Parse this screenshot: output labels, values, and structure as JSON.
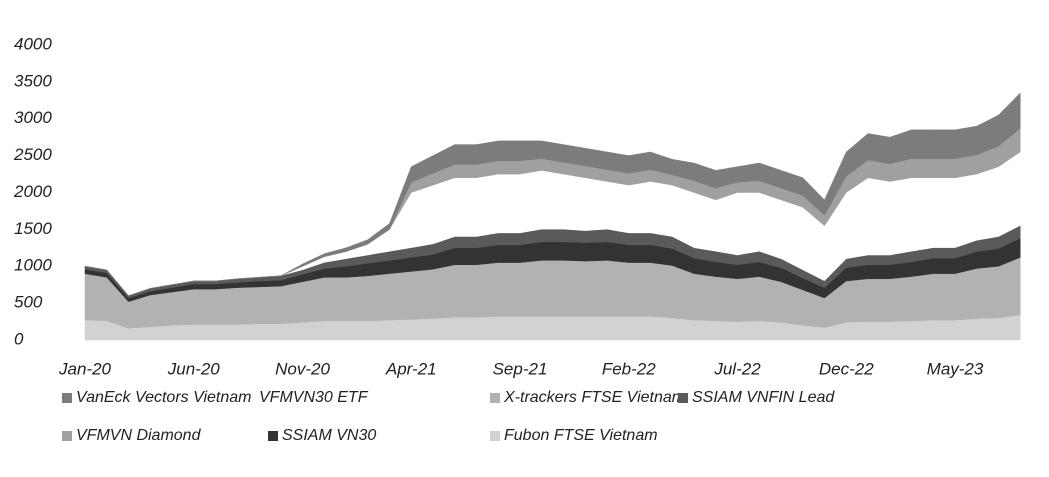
{
  "chart_data": {
    "type": "stacked_area",
    "categories": [
      "Jan-20",
      null,
      null,
      null,
      null,
      "Jun-20",
      null,
      null,
      null,
      null,
      "Nov-20",
      null,
      null,
      null,
      null,
      "Apr-21",
      null,
      null,
      null,
      null,
      "Sep-21",
      null,
      null,
      null,
      null,
      "Feb-22",
      null,
      null,
      null,
      null,
      "Jul-22",
      null,
      null,
      null,
      null,
      "Dec-22",
      null,
      null,
      null,
      null,
      "May-23",
      null,
      null,
      null
    ],
    "ylim": [
      0,
      4000
    ],
    "yticks": [
      0,
      500,
      1000,
      1500,
      2000,
      2500,
      3000,
      3500,
      4000
    ],
    "grid": false,
    "legend": "bottom",
    "series": [
      {
        "name": "Fubon FTSE Vietnam",
        "color": "#d2d2d2",
        "values": [
          270,
          260,
          160,
          180,
          200,
          210,
          210,
          210,
          220,
          220,
          240,
          260,
          260,
          260,
          270,
          280,
          290,
          310,
          310,
          320,
          320,
          320,
          320,
          320,
          320,
          320,
          320,
          300,
          270,
          260,
          250,
          260,
          240,
          200,
          170,
          240,
          250,
          250,
          260,
          270,
          270,
          290,
          300,
          340
        ]
      },
      {
        "name": "X-trackers FTSE Vietnam",
        "color": "#b2b2b2",
        "values": [
          630,
          590,
          360,
          430,
          450,
          480,
          480,
          500,
          500,
          510,
          550,
          590,
          590,
          610,
          630,
          650,
          670,
          710,
          710,
          730,
          730,
          760,
          760,
          750,
          760,
          730,
          730,
          710,
          630,
          600,
          580,
          600,
          550,
          480,
          400,
          560,
          580,
          580,
          600,
          630,
          630,
          680,
          700,
          780
        ]
      },
      {
        "name": "SSIAM VN30",
        "color": "#333333",
        "values": [
          60,
          60,
          50,
          50,
          60,
          70,
          70,
          70,
          80,
          80,
          100,
          120,
          150,
          170,
          180,
          190,
          200,
          230,
          230,
          240,
          240,
          250,
          250,
          250,
          250,
          240,
          240,
          230,
          210,
          200,
          190,
          200,
          190,
          160,
          140,
          180,
          190,
          190,
          200,
          210,
          210,
          230,
          240,
          260
        ]
      },
      {
        "name": "SSIAM VNFIN Lead",
        "color": "#5a5a5a",
        "values": [
          40,
          40,
          30,
          40,
          40,
          40,
          40,
          50,
          50,
          60,
          60,
          80,
          100,
          110,
          120,
          130,
          140,
          150,
          150,
          160,
          160,
          170,
          170,
          160,
          170,
          160,
          160,
          160,
          140,
          140,
          130,
          140,
          120,
          110,
          90,
          120,
          130,
          130,
          140,
          140,
          140,
          150,
          160,
          170
        ]
      },
      {
        "name": "VFMVN30 ETF",
        "color": "#ffffff",
        "values": [
          0,
          0,
          0,
          0,
          0,
          0,
          0,
          0,
          0,
          0,
          50,
          80,
          100,
          150,
          300,
          750,
          800,
          800,
          800,
          800,
          800,
          800,
          750,
          720,
          650,
          650,
          700,
          700,
          750,
          700,
          850,
          800,
          800,
          850,
          750,
          900,
          1050,
          1000,
          1000,
          950,
          950,
          900,
          950,
          1000
        ]
      },
      {
        "name": "VFMVN Diamond",
        "color": "#a0a0a0",
        "values": [
          0,
          0,
          0,
          0,
          0,
          0,
          0,
          0,
          0,
          0,
          0,
          0,
          0,
          0,
          0,
          140,
          160,
          180,
          180,
          180,
          180,
          160,
          160,
          160,
          160,
          160,
          160,
          140,
          160,
          160,
          140,
          160,
          160,
          160,
          140,
          220,
          240,
          240,
          260,
          260,
          260,
          260,
          280,
          320
        ]
      },
      {
        "name": "VanEck Vectors Vietnam",
        "color": "#7c7c7c",
        "values": [
          0,
          0,
          0,
          0,
          0,
          0,
          0,
          0,
          0,
          0,
          30,
          40,
          50,
          60,
          80,
          210,
          240,
          270,
          270,
          270,
          270,
          240,
          240,
          240,
          240,
          240,
          240,
          210,
          240,
          240,
          210,
          240,
          240,
          240,
          210,
          330,
          360,
          360,
          390,
          390,
          390,
          390,
          420,
          480
        ]
      }
    ]
  }
}
